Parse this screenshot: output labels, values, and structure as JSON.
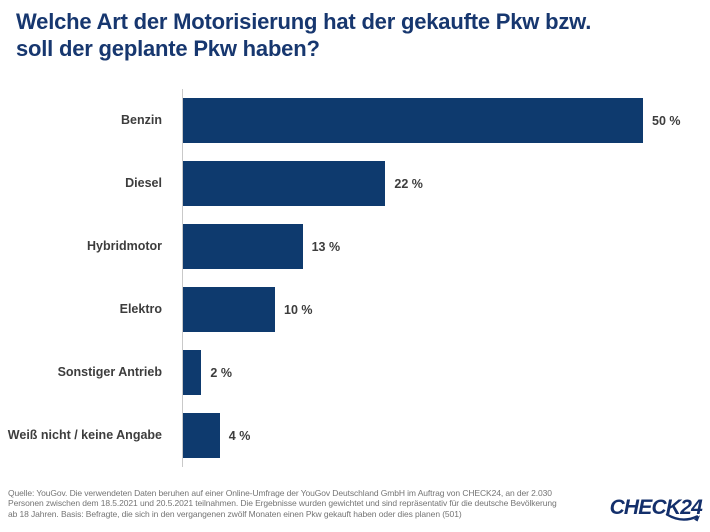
{
  "header": {
    "title_lines": [
      "Welche Art der Motorisierung hat der gekaufte Pkw bzw.",
      "soll der geplante Pkw haben?"
    ]
  },
  "chart_data": {
    "type": "bar",
    "orientation": "horizontal",
    "title": "Welche Art der Motorisierung hat der gekaufte Pkw bzw. soll der geplante Pkw haben?",
    "categories": [
      "Benzin",
      "Diesel",
      "Hybridmotor",
      "Elektro",
      "Sonstiger Antrieb",
      "Weiß nicht / keine Angabe"
    ],
    "values": [
      50,
      22,
      13,
      10,
      2,
      4
    ],
    "value_suffix": " %",
    "xlabel": "",
    "ylabel": "",
    "xlim": [
      0,
      50
    ],
    "grid": false,
    "legend": false,
    "bar_color": "#0e3a6e"
  },
  "colors": {
    "bar": "#0e3a6e",
    "title": "#17376f",
    "label_text": "#3d3d3d",
    "footer_text": "#757575",
    "logo": "#132f6b",
    "axis_line": "#c9c9c9"
  },
  "footer": {
    "source_lines": [
      "Quelle: YouGov. Die verwendeten Daten beruhen auf einer Online-Umfrage der YouGov Deutschland GmbH im Auftrag von CHECK24, an der 2.030",
      "Personen zwischen dem 18.5.2021 und 20.5.2021 teilnahmen. Die Ergebnisse wurden gewichtet und sind repräsentativ für die deutsche Bevölkerung",
      "ab 18 Jahren. Basis: Befragte, die sich in den vergangenen zwölf Monaten einen Pkw gekauft haben oder dies planen (501)"
    ],
    "logo_text": "CHECK24"
  }
}
